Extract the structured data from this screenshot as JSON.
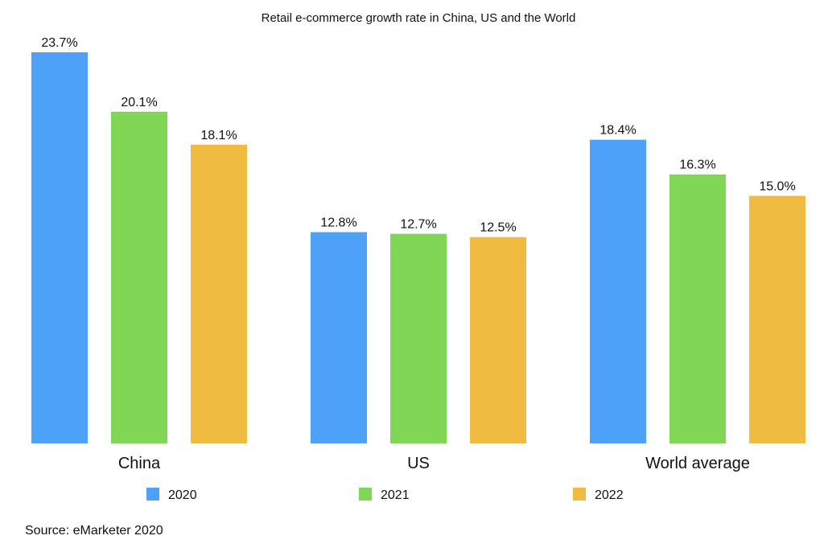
{
  "chart_data": {
    "type": "bar",
    "title": "Retail e-commerce growth rate in China, US and the World",
    "categories": [
      "China",
      "US",
      "World average"
    ],
    "series": [
      {
        "name": "2020",
        "values": [
          23.7,
          12.8,
          18.4
        ],
        "color": "#4DA1F7"
      },
      {
        "name": "2021",
        "values": [
          20.1,
          12.7,
          16.3
        ],
        "color": "#80D655"
      },
      {
        "name": "2022",
        "values": [
          18.1,
          12.5,
          15.0
        ],
        "color": "#EFBB40"
      }
    ],
    "data_labels": [
      [
        "23.7%",
        "12.8%",
        "18.4%"
      ],
      [
        "20.1%",
        "12.7%",
        "16.3%"
      ],
      [
        "18.1%",
        "12.5%",
        "15.0%"
      ]
    ],
    "ylim": [
      0,
      23.7
    ],
    "grid": false,
    "legend": "bottom",
    "xlabel": "",
    "ylabel": ""
  },
  "source": "Source: eMarketer 2020"
}
